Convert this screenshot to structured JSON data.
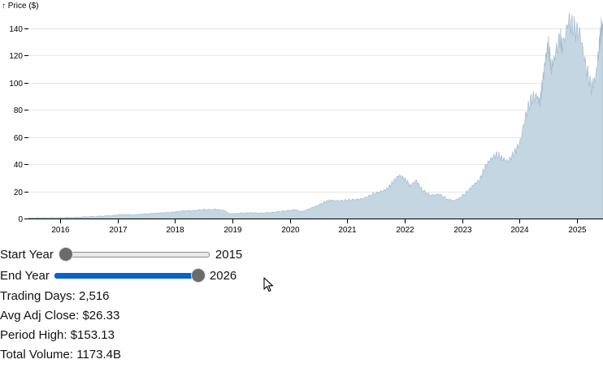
{
  "chart_data": {
    "type": "area",
    "ylabel": "↑ Price ($)",
    "y_ticks": [
      0,
      20,
      40,
      60,
      80,
      100,
      120,
      140
    ],
    "ylim": [
      0,
      150
    ],
    "x_range": [
      2015.45,
      2025.45
    ],
    "x_ticks": [
      "2016",
      "2017",
      "2018",
      "2019",
      "2020",
      "2021",
      "2022",
      "2023",
      "2024",
      "2025"
    ],
    "grid": "horizontal",
    "series": [
      {
        "color": "#c5d6e3",
        "points": [
          [
            2015.45,
            0.5
          ],
          [
            2015.7,
            0.6
          ],
          [
            2016.0,
            0.7
          ],
          [
            2016.3,
            1.0
          ],
          [
            2016.6,
            1.5
          ],
          [
            2016.9,
            2.2
          ],
          [
            2017.1,
            3.0
          ],
          [
            2017.3,
            2.8
          ],
          [
            2017.5,
            3.5
          ],
          [
            2017.7,
            4.0
          ],
          [
            2017.9,
            4.5
          ],
          [
            2018.1,
            5.5
          ],
          [
            2018.3,
            5.8
          ],
          [
            2018.5,
            6.5
          ],
          [
            2018.7,
            6.8
          ],
          [
            2018.85,
            6.0
          ],
          [
            2018.95,
            3.5
          ],
          [
            2019.1,
            3.8
          ],
          [
            2019.3,
            4.3
          ],
          [
            2019.5,
            4.0
          ],
          [
            2019.7,
            4.5
          ],
          [
            2019.9,
            5.5
          ],
          [
            2020.1,
            6.5
          ],
          [
            2020.2,
            5.0
          ],
          [
            2020.3,
            6.5
          ],
          [
            2020.45,
            9.0
          ],
          [
            2020.6,
            12.0
          ],
          [
            2020.7,
            13.5
          ],
          [
            2020.85,
            13.0
          ],
          [
            2021.0,
            13.5
          ],
          [
            2021.15,
            14.0
          ],
          [
            2021.3,
            15.0
          ],
          [
            2021.45,
            18.0
          ],
          [
            2021.6,
            20.0
          ],
          [
            2021.7,
            22.0
          ],
          [
            2021.8,
            27.0
          ],
          [
            2021.9,
            32.0
          ],
          [
            2022.0,
            29.0
          ],
          [
            2022.1,
            24.0
          ],
          [
            2022.2,
            28.0
          ],
          [
            2022.3,
            21.0
          ],
          [
            2022.45,
            17.0
          ],
          [
            2022.6,
            18.0
          ],
          [
            2022.75,
            14.0
          ],
          [
            2022.85,
            13.0
          ],
          [
            2022.95,
            15.0
          ],
          [
            2023.1,
            20.0
          ],
          [
            2023.2,
            25.0
          ],
          [
            2023.3,
            28.0
          ],
          [
            2023.4,
            38.0
          ],
          [
            2023.5,
            44.0
          ],
          [
            2023.6,
            47.0
          ],
          [
            2023.7,
            44.0
          ],
          [
            2023.8,
            42.0
          ],
          [
            2023.9,
            48.0
          ],
          [
            2024.0,
            55.0
          ],
          [
            2024.1,
            75.0
          ],
          [
            2024.2,
            88.0
          ],
          [
            2024.3,
            90.0
          ],
          [
            2024.35,
            85.0
          ],
          [
            2024.4,
            100.0
          ],
          [
            2024.45,
            118.0
          ],
          [
            2024.5,
            128.0
          ],
          [
            2024.55,
            110.0
          ],
          [
            2024.6,
            118.0
          ],
          [
            2024.7,
            133.0
          ],
          [
            2024.75,
            126.0
          ],
          [
            2024.85,
            146.0
          ],
          [
            2024.95,
            140.0
          ],
          [
            2025.05,
            136.0
          ],
          [
            2025.15,
            112.0
          ],
          [
            2025.25,
            96.0
          ],
          [
            2025.32,
            103.0
          ],
          [
            2025.38,
            125.0
          ],
          [
            2025.42,
            140.0
          ],
          [
            2025.45,
            142.0
          ]
        ]
      }
    ]
  },
  "controls": {
    "start": {
      "label": "Start Year",
      "value": "2015",
      "min": 2015,
      "max": 2026,
      "current": 2015
    },
    "end": {
      "label": "End Year",
      "value": "2026",
      "min": 2015,
      "max": 2026,
      "current": 2026
    }
  },
  "stats": {
    "trading_days": "Trading Days: 2,516",
    "avg_adj_close": "Avg Adj Close: $26.33",
    "period_high": "Period High: $153.13",
    "total_volume": "Total Volume: 1173.4B"
  },
  "icons": {
    "cursor": "mouse-pointer-icon"
  }
}
